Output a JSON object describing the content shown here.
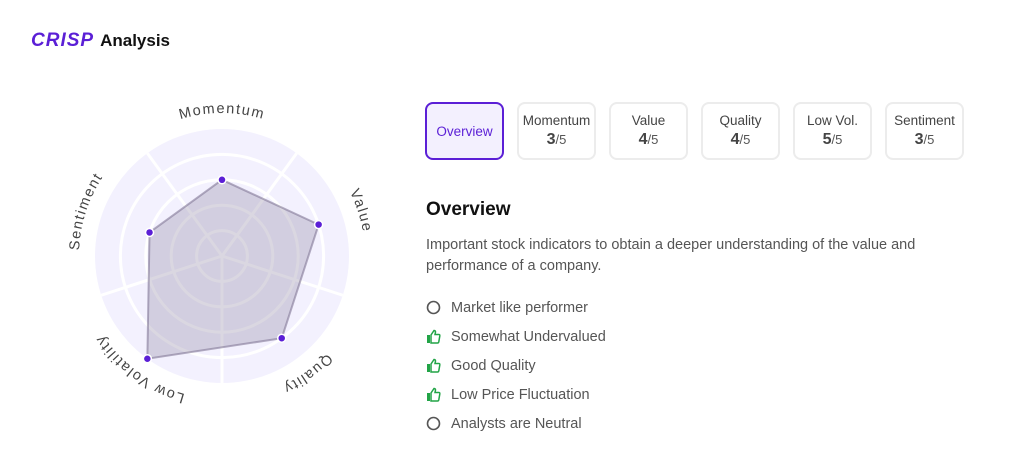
{
  "header": {
    "brand": "CRISP",
    "title": "Analysis"
  },
  "chart_data": {
    "type": "radar",
    "axes": [
      "Momentum",
      "Value",
      "Quality",
      "Low Volatility",
      "Sentiment"
    ],
    "values": [
      3,
      4,
      4,
      5,
      3
    ],
    "max": 5,
    "colors": {
      "point": "#5b1fd6",
      "fill": "#bfb8cf",
      "background": "#f3f1fe"
    }
  },
  "tabs": [
    {
      "label": "Overview",
      "active": true
    },
    {
      "label": "Momentum",
      "score": "3",
      "of": "/5"
    },
    {
      "label": "Value",
      "score": "4",
      "of": "/5"
    },
    {
      "label": "Quality",
      "score": "4",
      "of": "/5"
    },
    {
      "label": "Low Vol.",
      "score": "5",
      "of": "/5"
    },
    {
      "label": "Sentiment",
      "score": "3",
      "of": "/5"
    }
  ],
  "overview": {
    "title": "Overview",
    "description": "Important stock indicators to obtain a deeper understanding of the value and performance of a company.",
    "items": [
      {
        "text": "Market like performer",
        "icon": "circle-icon"
      },
      {
        "text": "Somewhat Undervalued",
        "icon": "thumbs-up-icon"
      },
      {
        "text": "Good Quality",
        "icon": "thumbs-up-icon"
      },
      {
        "text": "Low Price Fluctuation",
        "icon": "thumbs-up-icon"
      },
      {
        "text": "Analysts are Neutral",
        "icon": "circle-icon"
      }
    ],
    "colors": {
      "positive": "#22a447",
      "neutral": "#555555"
    }
  }
}
